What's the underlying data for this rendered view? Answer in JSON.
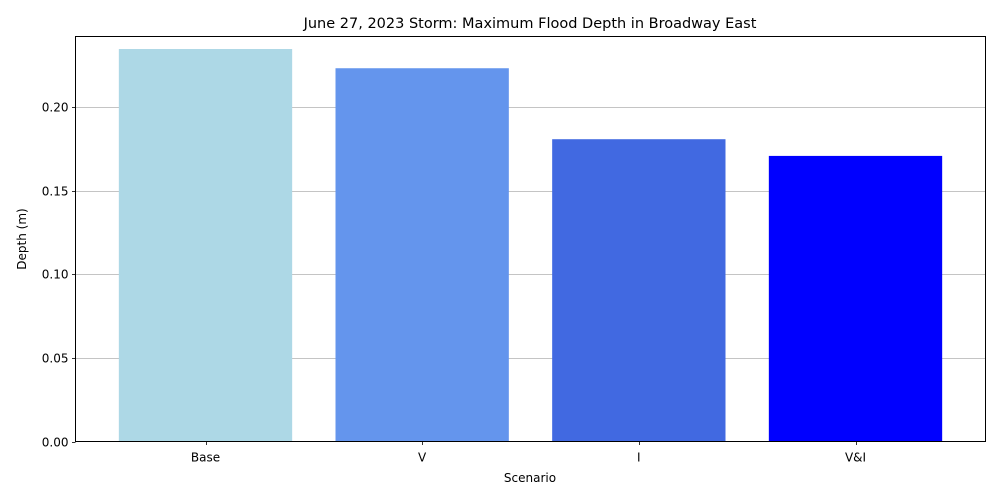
{
  "chart_data": {
    "type": "bar",
    "title": "June 27, 2023 Storm: Maximum Flood Depth in Broadway East",
    "xlabel": "Scenario",
    "ylabel": "Depth (m)",
    "categories": [
      "Base",
      "V",
      "I",
      "V&I"
    ],
    "values": [
      0.235,
      0.2235,
      0.181,
      0.171
    ],
    "colors": [
      "#add8e6",
      "#6495ed",
      "#4169e1",
      "#0000ff"
    ],
    "ylim": [
      0,
      0.2425
    ],
    "yticks": [
      "0.00",
      "0.05",
      "0.10",
      "0.15",
      "0.20"
    ],
    "grid": "y-axis major gridlines",
    "legend": "none"
  }
}
